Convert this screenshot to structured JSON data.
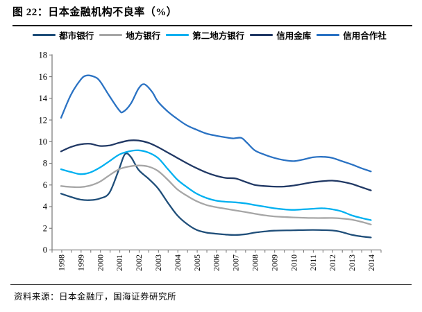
{
  "figure": {
    "title": "图 22：日本金融机构不良率（%）",
    "source": "资料来源：日本金融厅，国海证券研究所"
  },
  "chart_data": {
    "type": "line",
    "title": "日本金融机构不良率（%）",
    "xlabel": "",
    "ylabel": "",
    "ylim": [
      0,
      18
    ],
    "ytick_step": 2,
    "xticks": [
      1998,
      1999,
      2000,
      2001,
      2002,
      2003,
      2004,
      2005,
      2006,
      2007,
      2008,
      2009,
      2010,
      2011,
      2012,
      2013,
      2014
    ],
    "grid": false,
    "legend_position": "top",
    "axis_color": "#7f7f7f",
    "series": [
      {
        "name": "都市银行",
        "color": "#1F4E79",
        "points": [
          [
            1998,
            5.2
          ],
          [
            1998.5,
            4.9
          ],
          [
            1999,
            4.65
          ],
          [
            1999.5,
            4.6
          ],
          [
            2000,
            4.75
          ],
          [
            2000.5,
            5.3
          ],
          [
            2001,
            7.5
          ],
          [
            2001.3,
            8.85
          ],
          [
            2001.6,
            8.6
          ],
          [
            2002,
            7.4
          ],
          [
            2002.5,
            6.6
          ],
          [
            2003,
            5.7
          ],
          [
            2003.5,
            4.4
          ],
          [
            2004,
            3.2
          ],
          [
            2004.5,
            2.4
          ],
          [
            2005,
            1.85
          ],
          [
            2005.5,
            1.6
          ],
          [
            2006,
            1.5
          ],
          [
            2006.5,
            1.42
          ],
          [
            2007,
            1.38
          ],
          [
            2007.5,
            1.45
          ],
          [
            2008,
            1.6
          ],
          [
            2008.5,
            1.7
          ],
          [
            2009,
            1.78
          ],
          [
            2010,
            1.82
          ],
          [
            2011,
            1.85
          ],
          [
            2012,
            1.8
          ],
          [
            2012.5,
            1.65
          ],
          [
            2013,
            1.4
          ],
          [
            2013.5,
            1.25
          ],
          [
            2014,
            1.15
          ]
        ]
      },
      {
        "name": "地方银行",
        "color": "#A6A6A6",
        "points": [
          [
            1998,
            5.9
          ],
          [
            1998.5,
            5.82
          ],
          [
            1999,
            5.8
          ],
          [
            1999.5,
            5.95
          ],
          [
            2000,
            6.3
          ],
          [
            2000.5,
            6.9
          ],
          [
            2001,
            7.45
          ],
          [
            2001.5,
            7.7
          ],
          [
            2002,
            7.8
          ],
          [
            2002.5,
            7.7
          ],
          [
            2003,
            7.3
          ],
          [
            2003.5,
            6.5
          ],
          [
            2004,
            5.6
          ],
          [
            2004.5,
            5.0
          ],
          [
            2005,
            4.5
          ],
          [
            2005.5,
            4.15
          ],
          [
            2006,
            3.95
          ],
          [
            2006.5,
            3.8
          ],
          [
            2007,
            3.65
          ],
          [
            2007.5,
            3.5
          ],
          [
            2008,
            3.35
          ],
          [
            2008.5,
            3.2
          ],
          [
            2009,
            3.1
          ],
          [
            2009.5,
            3.05
          ],
          [
            2010,
            3.0
          ],
          [
            2011,
            2.95
          ],
          [
            2012,
            2.95
          ],
          [
            2012.5,
            2.9
          ],
          [
            2013,
            2.8
          ],
          [
            2013.5,
            2.6
          ],
          [
            2014,
            2.35
          ]
        ]
      },
      {
        "name": "第二地方银行",
        "color": "#00B0F0",
        "points": [
          [
            1998,
            7.45
          ],
          [
            1998.5,
            7.2
          ],
          [
            1999,
            7.0
          ],
          [
            1999.5,
            7.15
          ],
          [
            2000,
            7.6
          ],
          [
            2000.5,
            8.2
          ],
          [
            2001,
            8.8
          ],
          [
            2001.5,
            9.1
          ],
          [
            2002,
            9.2
          ],
          [
            2002.5,
            9.0
          ],
          [
            2003,
            8.5
          ],
          [
            2003.5,
            7.5
          ],
          [
            2004,
            6.5
          ],
          [
            2004.5,
            5.8
          ],
          [
            2005,
            5.2
          ],
          [
            2005.5,
            4.8
          ],
          [
            2006,
            4.55
          ],
          [
            2006.5,
            4.45
          ],
          [
            2007,
            4.4
          ],
          [
            2007.5,
            4.3
          ],
          [
            2008,
            4.15
          ],
          [
            2008.5,
            4.0
          ],
          [
            2009,
            3.85
          ],
          [
            2009.5,
            3.75
          ],
          [
            2010,
            3.7
          ],
          [
            2010.5,
            3.75
          ],
          [
            2011,
            3.8
          ],
          [
            2011.5,
            3.85
          ],
          [
            2012,
            3.75
          ],
          [
            2012.5,
            3.55
          ],
          [
            2013,
            3.2
          ],
          [
            2013.5,
            2.95
          ],
          [
            2014,
            2.75
          ]
        ]
      },
      {
        "name": "信用金库",
        "color": "#203864",
        "points": [
          [
            1998,
            9.1
          ],
          [
            1998.5,
            9.5
          ],
          [
            1999,
            9.75
          ],
          [
            1999.5,
            9.8
          ],
          [
            2000,
            9.6
          ],
          [
            2000.5,
            9.65
          ],
          [
            2001,
            9.9
          ],
          [
            2001.5,
            10.1
          ],
          [
            2002,
            10.1
          ],
          [
            2002.5,
            9.9
          ],
          [
            2003,
            9.5
          ],
          [
            2003.5,
            9.0
          ],
          [
            2004,
            8.5
          ],
          [
            2004.5,
            8.0
          ],
          [
            2005,
            7.55
          ],
          [
            2005.5,
            7.15
          ],
          [
            2006,
            6.85
          ],
          [
            2006.5,
            6.65
          ],
          [
            2007,
            6.6
          ],
          [
            2007.5,
            6.3
          ],
          [
            2008,
            6.0
          ],
          [
            2008.5,
            5.9
          ],
          [
            2009,
            5.85
          ],
          [
            2009.5,
            5.85
          ],
          [
            2010,
            5.95
          ],
          [
            2010.5,
            6.1
          ],
          [
            2011,
            6.25
          ],
          [
            2011.5,
            6.35
          ],
          [
            2012,
            6.4
          ],
          [
            2012.5,
            6.3
          ],
          [
            2013,
            6.1
          ],
          [
            2013.5,
            5.8
          ],
          [
            2014,
            5.5
          ]
        ]
      },
      {
        "name": "信用合作社",
        "color": "#2A72C3",
        "points": [
          [
            1998,
            12.2
          ],
          [
            1998.5,
            14.3
          ],
          [
            1999,
            15.7
          ],
          [
            1999.3,
            16.1
          ],
          [
            1999.7,
            16.0
          ],
          [
            2000,
            15.6
          ],
          [
            2000.5,
            14.2
          ],
          [
            2001,
            12.9
          ],
          [
            2001.2,
            12.75
          ],
          [
            2001.6,
            13.5
          ],
          [
            2002,
            14.9
          ],
          [
            2002.3,
            15.3
          ],
          [
            2002.7,
            14.6
          ],
          [
            2003,
            13.7
          ],
          [
            2003.5,
            12.8
          ],
          [
            2004,
            12.1
          ],
          [
            2004.5,
            11.5
          ],
          [
            2005,
            11.1
          ],
          [
            2005.5,
            10.75
          ],
          [
            2006,
            10.55
          ],
          [
            2006.5,
            10.4
          ],
          [
            2006.9,
            10.3
          ],
          [
            2007.3,
            10.35
          ],
          [
            2007.6,
            9.9
          ],
          [
            2008,
            9.2
          ],
          [
            2008.5,
            8.8
          ],
          [
            2009,
            8.5
          ],
          [
            2009.5,
            8.3
          ],
          [
            2010,
            8.2
          ],
          [
            2010.5,
            8.35
          ],
          [
            2011,
            8.55
          ],
          [
            2011.5,
            8.6
          ],
          [
            2012,
            8.5
          ],
          [
            2012.5,
            8.2
          ],
          [
            2013,
            7.9
          ],
          [
            2013.5,
            7.55
          ],
          [
            2014,
            7.25
          ]
        ]
      }
    ]
  }
}
